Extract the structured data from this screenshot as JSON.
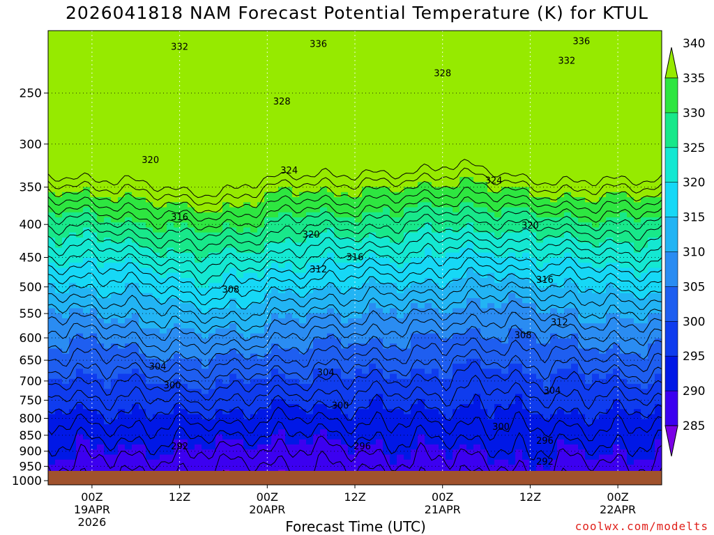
{
  "title": "2026041818 NAM Forecast Potential Temperature (K) for KTUL",
  "credit": "coolwx.com/modelts",
  "chart_data": {
    "type": "heatmap",
    "title": "2026041818 NAM Forecast Potential Temperature (K) for KTUL",
    "xlabel": "Forecast Time (UTC)",
    "ylabel": "",
    "y_axis": {
      "scale": "log-pressure",
      "inverted": true,
      "unit": "hPa",
      "ticks": [
        "250",
        "300",
        "350",
        "400",
        "450",
        "500",
        "550",
        "600",
        "650",
        "700",
        "750",
        "800",
        "850",
        "900",
        "950",
        "1000"
      ],
      "ylim_hPa": [
        200,
        1015
      ]
    },
    "x_axis": {
      "ticks": [
        {
          "label": "00Z",
          "sub": "19APR",
          "sub2": "2026",
          "hour": 6
        },
        {
          "label": "12Z",
          "sub": "",
          "sub2": "",
          "hour": 18
        },
        {
          "label": "00Z",
          "sub": "20APR",
          "sub2": "",
          "hour": 30
        },
        {
          "label": "12Z",
          "sub": "",
          "sub2": "",
          "hour": 42
        },
        {
          "label": "00Z",
          "sub": "21APR",
          "sub2": "",
          "hour": 54
        },
        {
          "label": "12Z",
          "sub": "",
          "sub2": "",
          "hour": 66
        },
        {
          "label": "00Z",
          "sub": "22APR",
          "sub2": "",
          "hour": 78
        }
      ],
      "xlim_hours": [
        0,
        84
      ]
    },
    "colorbar": {
      "levels": [
        "285",
        "290",
        "295",
        "300",
        "305",
        "310",
        "315",
        "320",
        "325",
        "330",
        "335",
        "340"
      ],
      "colors": [
        "#7b00e6",
        "#3c00f0",
        "#0018e6",
        "#0f3cee",
        "#1e5ef0",
        "#2a8cf2",
        "#22b4f4",
        "#16d8f6",
        "#14e8d2",
        "#18e88a",
        "#2ee640",
        "#96ea00"
      ],
      "extend": "both"
    },
    "contour_interval_K": 2,
    "contour_labels": [
      {
        "text": "332",
        "hour": 18,
        "hPa": 212
      },
      {
        "text": "336",
        "hour": 37,
        "hPa": 210
      },
      {
        "text": "336",
        "hour": 73,
        "hPa": 208
      },
      {
        "text": "332",
        "hour": 71,
        "hPa": 223
      },
      {
        "text": "328",
        "hour": 54,
        "hPa": 233
      },
      {
        "text": "328",
        "hour": 32,
        "hPa": 258
      },
      {
        "text": "324",
        "hour": 33,
        "hPa": 330
      },
      {
        "text": "324",
        "hour": 61,
        "hPa": 342
      },
      {
        "text": "320",
        "hour": 14,
        "hPa": 318
      },
      {
        "text": "320",
        "hour": 36,
        "hPa": 415
      },
      {
        "text": "320",
        "hour": 66,
        "hPa": 402
      },
      {
        "text": "316",
        "hour": 18,
        "hPa": 390
      },
      {
        "text": "316",
        "hour": 42,
        "hPa": 450
      },
      {
        "text": "316",
        "hour": 68,
        "hPa": 488
      },
      {
        "text": "312",
        "hour": 37,
        "hPa": 470
      },
      {
        "text": "312",
        "hour": 70,
        "hPa": 568
      },
      {
        "text": "308",
        "hour": 25,
        "hPa": 505
      },
      {
        "text": "308",
        "hour": 65,
        "hPa": 595
      },
      {
        "text": "304",
        "hour": 15,
        "hPa": 665
      },
      {
        "text": "304",
        "hour": 38,
        "hPa": 680
      },
      {
        "text": "304",
        "hour": 69,
        "hPa": 725
      },
      {
        "text": "300",
        "hour": 17,
        "hPa": 712
      },
      {
        "text": "300",
        "hour": 40,
        "hPa": 765
      },
      {
        "text": "300",
        "hour": 62,
        "hPa": 825
      },
      {
        "text": "296",
        "hour": 43,
        "hPa": 885
      },
      {
        "text": "296",
        "hour": 68,
        "hPa": 868
      },
      {
        "text": "292",
        "hour": 18,
        "hPa": 885
      },
      {
        "text": "292",
        "hour": 68,
        "hPa": 935
      }
    ]
  }
}
